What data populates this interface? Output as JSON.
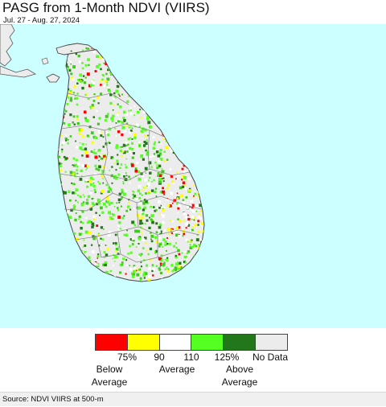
{
  "title": "PASG from 1-Month NDVI (VIIRS)",
  "subtitle": "Jul. 27 - Aug. 27, 2024",
  "colors": {
    "ocean": "#ccffff",
    "land": "#ececec",
    "boundary": "#8a8a8a"
  },
  "legend": {
    "swatches": [
      {
        "color": "#ff0000"
      },
      {
        "color": "#ffff00"
      },
      {
        "color": "#ffffff"
      },
      {
        "color": "#55ff22"
      },
      {
        "color": "#22771a"
      },
      {
        "color": "#ececec"
      }
    ],
    "ticks": [
      "75%",
      "90",
      "110",
      "125%"
    ],
    "no_data": "No Data",
    "below_line1": "Below",
    "below_line2": "Average",
    "average": "Average",
    "above_line1": "Above",
    "above_line2": "Average"
  },
  "source": "Source: NDVI VIIRS at 500-m"
}
